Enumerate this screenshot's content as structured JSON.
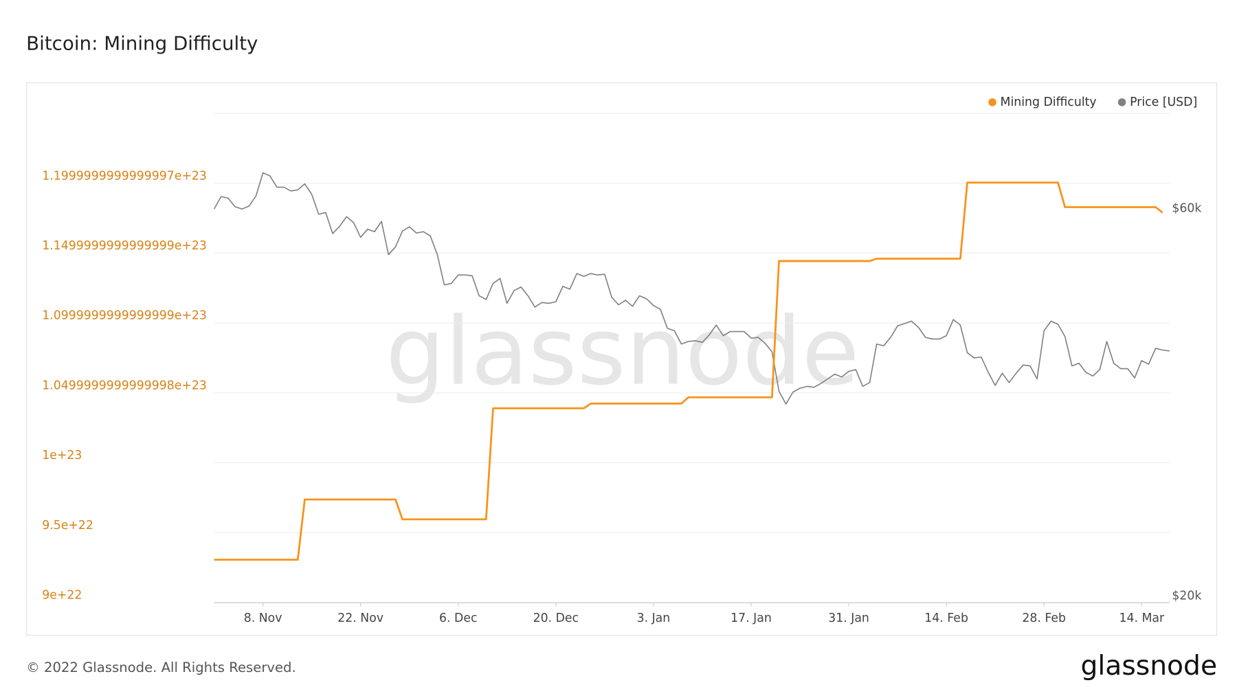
{
  "chart_data": {
    "type": "line",
    "title": "Bitcoin: Mining Difficulty",
    "footer": "© 2022 Glassnode. All Rights Reserved.",
    "brand": "glassnode",
    "watermark": "glassnode",
    "categories": [
      null,
      null,
      null,
      null,
      null,
      null,
      null,
      "8. Nov",
      null,
      null,
      null,
      null,
      null,
      null,
      null,
      null,
      null,
      null,
      null,
      null,
      null,
      "22. Nov",
      null,
      null,
      null,
      null,
      null,
      null,
      null,
      null,
      null,
      null,
      null,
      null,
      null,
      "6. Dec",
      null,
      null,
      null,
      null,
      null,
      null,
      null,
      null,
      null,
      null,
      null,
      null,
      null,
      "20. Dec",
      null,
      null,
      null,
      null,
      null,
      null,
      null,
      null,
      null,
      null,
      null,
      null,
      null,
      "3. Jan",
      null,
      null,
      null,
      null,
      null,
      null,
      null,
      null,
      null,
      null,
      null,
      null,
      null,
      "17. Jan",
      null,
      null,
      null,
      null,
      null,
      null,
      null,
      null,
      null,
      null,
      null,
      null,
      null,
      "31. Jan",
      null,
      null,
      null,
      null,
      null,
      null,
      null,
      null,
      null,
      null,
      null,
      null,
      null,
      "14. Feb",
      null,
      null,
      null,
      null,
      null,
      null,
      null,
      null,
      null,
      null,
      null,
      null,
      null,
      "28. Feb",
      null,
      null,
      null,
      null,
      null,
      null,
      null,
      null,
      null,
      null,
      null,
      null,
      null,
      "14. Mar",
      null,
      null,
      null,
      null
    ],
    "series": [
      {
        "name": "Mining Difficulty",
        "color": "#f7931a",
        "axis": "y",
        "values": [
          9.306e+22,
          9.306e+22,
          9.306e+22,
          9.306e+22,
          9.306e+22,
          9.306e+22,
          9.306e+22,
          9.306e+22,
          9.306e+22,
          9.306e+22,
          9.306e+22,
          9.306e+22,
          9.306e+22,
          9.737e+22,
          9.737e+22,
          9.737e+22,
          9.737e+22,
          9.737e+22,
          9.737e+22,
          9.737e+22,
          9.737e+22,
          9.737e+22,
          9.737e+22,
          9.737e+22,
          9.737e+22,
          9.737e+22,
          9.737e+22,
          9.595e+22,
          9.595e+22,
          9.595e+22,
          9.595e+22,
          9.595e+22,
          9.595e+22,
          9.595e+22,
          9.595e+22,
          9.595e+22,
          9.595e+22,
          9.595e+22,
          9.595e+22,
          9.595e+22,
          1.0389e+23,
          1.0389e+23,
          1.0389e+23,
          1.0389e+23,
          1.0389e+23,
          1.0389e+23,
          1.0389e+23,
          1.0389e+23,
          1.0389e+23,
          1.0389e+23,
          1.0389e+23,
          1.0389e+23,
          1.0389e+23,
          1.0389e+23,
          1.0423e+23,
          1.0423e+23,
          1.0423e+23,
          1.0423e+23,
          1.0423e+23,
          1.0423e+23,
          1.0423e+23,
          1.0423e+23,
          1.0423e+23,
          1.0423e+23,
          1.0423e+23,
          1.0423e+23,
          1.0423e+23,
          1.0423e+23,
          1.0468e+23,
          1.0468e+23,
          1.0468e+23,
          1.0468e+23,
          1.0468e+23,
          1.0468e+23,
          1.0468e+23,
          1.0468e+23,
          1.0468e+23,
          1.0468e+23,
          1.0468e+23,
          1.0468e+23,
          1.0468e+23,
          1.1443e+23,
          1.1443e+23,
          1.1443e+23,
          1.1443e+23,
          1.1443e+23,
          1.1443e+23,
          1.1443e+23,
          1.1443e+23,
          1.1443e+23,
          1.1443e+23,
          1.1443e+23,
          1.1443e+23,
          1.1443e+23,
          1.1443e+23,
          1.146e+23,
          1.146e+23,
          1.146e+23,
          1.146e+23,
          1.146e+23,
          1.146e+23,
          1.146e+23,
          1.146e+23,
          1.146e+23,
          1.146e+23,
          1.146e+23,
          1.146e+23,
          1.146e+23,
          1.2005e+23,
          1.2005e+23,
          1.2005e+23,
          1.2005e+23,
          1.2005e+23,
          1.2005e+23,
          1.2005e+23,
          1.2005e+23,
          1.2005e+23,
          1.2005e+23,
          1.2005e+23,
          1.2005e+23,
          1.2005e+23,
          1.2005e+23,
          1.1829e+23,
          1.1829e+23,
          1.1829e+23,
          1.1829e+23,
          1.1829e+23,
          1.1829e+23,
          1.1829e+23,
          1.1829e+23,
          1.1829e+23,
          1.1829e+23,
          1.1829e+23,
          1.1829e+23,
          1.1829e+23,
          1.1829e+23,
          1.1789e+23,
          null
        ]
      },
      {
        "name": "Price [USD]",
        "color": "#808080",
        "axis": "y2",
        "values": [
          61000,
          63200,
          62900,
          61400,
          61000,
          61500,
          63300,
          67600,
          67000,
          64900,
          64900,
          64200,
          64400,
          65500,
          63600,
          60100,
          60400,
          56900,
          58100,
          59700,
          58700,
          56300,
          57600,
          57200,
          58900,
          53600,
          54800,
          57300,
          58000,
          57000,
          57200,
          56500,
          53600,
          49200,
          49400,
          50600,
          50600,
          50500,
          47700,
          47200,
          49400,
          50100,
          46700,
          48400,
          48900,
          47700,
          46200,
          46800,
          46700,
          46900,
          49000,
          48600,
          50800,
          50400,
          50800,
          50600,
          50700,
          47500,
          46500,
          47100,
          46300,
          47700,
          47300,
          46400,
          45900,
          43500,
          43200,
          41600,
          41900,
          42000,
          41800,
          42700,
          43900,
          42600,
          43100,
          43100,
          43100,
          42300,
          42400,
          41700,
          40700,
          36400,
          35100,
          36300,
          36700,
          36900,
          36800,
          37200,
          37700,
          38200,
          37900,
          38500,
          38700,
          36900,
          37300,
          41600,
          41400,
          42400,
          43800,
          44100,
          44400,
          43600,
          42400,
          42200,
          42200,
          42600,
          44600,
          43900,
          40600,
          40000,
          40100,
          38400,
          37000,
          38300,
          37300,
          38300,
          39200,
          39100,
          37700,
          43200,
          44400,
          44000,
          42500,
          39100,
          39400,
          38400,
          38000,
          38700,
          41900,
          39400,
          38800,
          38800,
          37800,
          39700,
          39300,
          41100,
          40900,
          40800
        ]
      }
    ],
    "ylim": [
      9e+22,
      1.25e+23
    ],
    "yticks": [
      {
        "value": 9e+22,
        "label": "9e+22"
      },
      {
        "value": 9.5e+22,
        "label": "9.5e+22"
      },
      {
        "value": 1e+23,
        "label": "1e+23"
      },
      {
        "value": 1.05e+23,
        "label": "1.0499999999999998e+23"
      },
      {
        "value": 1.1e+23,
        "label": "1.0999999999999999e+23"
      },
      {
        "value": 1.15e+23,
        "label": "1.1499999999999999e+23"
      },
      {
        "value": 1.2e+23,
        "label": "1.1999999999999997e+23"
      }
    ],
    "y2lim": [
      20000,
      80000
    ],
    "y2scale": "log",
    "y2ticks": [
      {
        "value": 20000,
        "label": "$20k"
      },
      {
        "value": 60000,
        "label": "$60k"
      }
    ],
    "grid": true,
    "legend": "top-right"
  }
}
